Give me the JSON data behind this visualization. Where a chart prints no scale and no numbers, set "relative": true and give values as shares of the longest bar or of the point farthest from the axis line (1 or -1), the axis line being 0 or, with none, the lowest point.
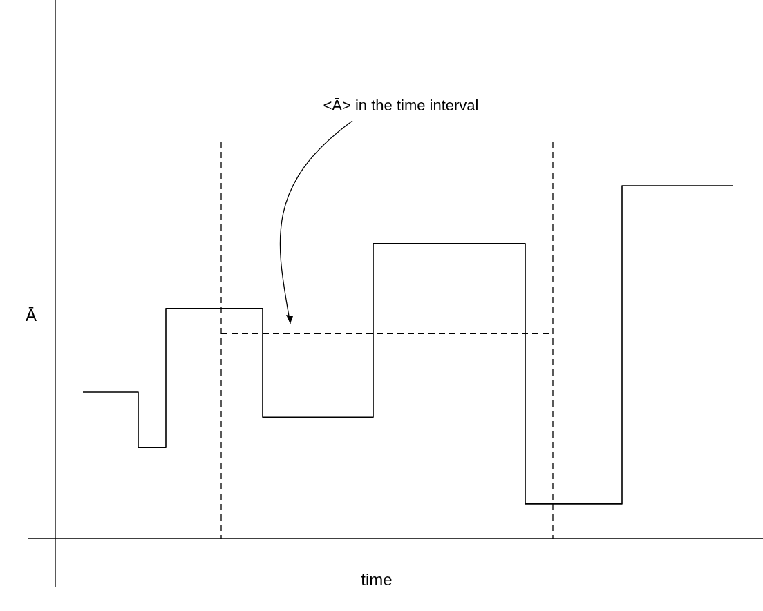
{
  "chart_data": {
    "type": "step",
    "relative": true,
    "xlabel": "time",
    "ylabel": "Ā",
    "categories": [
      null,
      null,
      null,
      null,
      null,
      null,
      null,
      null,
      null,
      null,
      null,
      null,
      null,
      null,
      null,
      null,
      null,
      null,
      null,
      null,
      null,
      null,
      null,
      null,
      null,
      null,
      null,
      null,
      null,
      null,
      null,
      null,
      null,
      null,
      null,
      null,
      null,
      null,
      null,
      null,
      null,
      null,
      null,
      null,
      null,
      null,
      null,
      null
    ],
    "series": [
      {
        "color": "#000000",
        "values": [
          0.415,
          0.415,
          0.415,
          0.415,
          0.258,
          0.258,
          0.652,
          0.652,
          0.652,
          0.652,
          0.652,
          0.652,
          0.652,
          0.344,
          0.344,
          0.344,
          0.344,
          0.344,
          0.344,
          0.344,
          0.344,
          0.836,
          0.836,
          0.836,
          0.836,
          0.836,
          0.836,
          0.836,
          0.836,
          0.836,
          0.836,
          0.836,
          0.098,
          0.098,
          0.098,
          0.098,
          0.098,
          0.098,
          0.098,
          1,
          1,
          1,
          1,
          1,
          1,
          1,
          1,
          1
        ]
      },
      {
        "type": "line",
        "color": "#000000",
        "line_style": "dashed",
        "values": [
          null,
          null,
          null,
          null,
          null,
          null,
          null,
          null,
          null,
          null,
          0.581,
          0.581,
          0.581,
          0.581,
          0.581,
          0.581,
          0.581,
          0.581,
          0.581,
          0.581,
          0.581,
          0.581,
          0.581,
          0.581,
          0.581,
          0.581,
          0.581,
          0.581,
          0.581,
          0.581,
          0.581,
          0.581,
          0.581,
          0.581,
          0.581,
          null,
          null,
          null,
          null,
          null,
          null,
          null,
          null,
          null,
          null,
          null,
          null,
          null
        ]
      }
    ],
    "annotations": [
      "<Ā> in the time interval"
    ]
  }
}
